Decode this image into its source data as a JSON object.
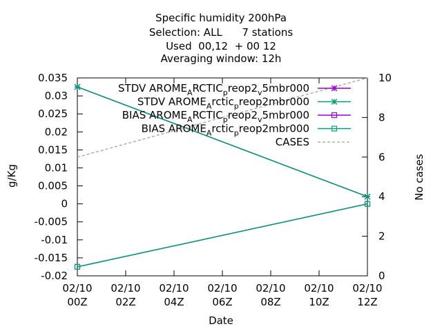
{
  "chart_data": {
    "type": "line",
    "title_lines": [
      "Specific humidity 200hPa",
      "Selection: ALL      7 stations",
      "Used  00,12  + 00 12",
      "Averaging window: 12h"
    ],
    "xlabel": "Date",
    "ylabel": "g/Kg",
    "y2label": "No cases",
    "x_ticks": [
      "02/10 00Z",
      "02/10 02Z",
      "02/10 04Z",
      "02/10 06Z",
      "02/10 08Z",
      "02/10 10Z",
      "02/10 12Z"
    ],
    "x_range_hours": [
      0,
      12
    ],
    "y_ticks": [
      "0.035",
      "0.03",
      "0.025",
      "0.02",
      "0.015",
      "0.01",
      "0.005",
      "0",
      "-0.005",
      "-0.01",
      "-0.015",
      "-0.02"
    ],
    "ylim": [
      -0.02,
      0.035
    ],
    "y2_ticks": [
      "10",
      "8",
      "6",
      "4",
      "2",
      "0"
    ],
    "y2lim": [
      0,
      10
    ],
    "legend_position": "top-right",
    "grid": false,
    "series": [
      {
        "name": "STDV AROME_ARCTIC_preop2_v5mbr000",
        "label_parts": [
          [
            "STDV AROME",
            ""
          ],
          [
            "A",
            "sub"
          ],
          [
            "RCTIC",
            ""
          ],
          [
            "p",
            "sub"
          ],
          [
            "reop2",
            ""
          ],
          [
            "v",
            "sub"
          ],
          [
            "5mbr000",
            ""
          ]
        ],
        "x": [
          0,
          12
        ],
        "y": [
          0.0325,
          0.002
        ],
        "axis": "y1",
        "color": "#9400d3",
        "marker": "star",
        "dash": false
      },
      {
        "name": "STDV AROME_Arctic_preop2mbr000",
        "label_parts": [
          [
            "STDV AROME",
            ""
          ],
          [
            "A",
            "sub"
          ],
          [
            "rctic",
            ""
          ],
          [
            "p",
            "sub"
          ],
          [
            "reop2mbr000",
            ""
          ]
        ],
        "x": [
          0,
          12
        ],
        "y": [
          0.0325,
          0.002
        ],
        "axis": "y1",
        "color": "#009e73",
        "marker": "star",
        "dash": false
      },
      {
        "name": "BIAS AROME_ARCTIC_preop2_v5mbr000",
        "label_parts": [
          [
            "BIAS AROME",
            ""
          ],
          [
            "A",
            "sub"
          ],
          [
            "RCTIC",
            ""
          ],
          [
            "p",
            "sub"
          ],
          [
            "reop2",
            ""
          ],
          [
            "v",
            "sub"
          ],
          [
            "5mbr000",
            ""
          ]
        ],
        "x": [
          0,
          12
        ],
        "y": [
          -0.0175,
          0.0
        ],
        "axis": "y1",
        "color": "#9400d3",
        "marker": "square",
        "dash": false
      },
      {
        "name": "BIAS AROME_Arctic_preop2mbr000",
        "label_parts": [
          [
            "BIAS AROME",
            ""
          ],
          [
            "A",
            "sub"
          ],
          [
            "rctic",
            ""
          ],
          [
            "p",
            "sub"
          ],
          [
            "reop2mbr000",
            ""
          ]
        ],
        "x": [
          0,
          12
        ],
        "y": [
          -0.0175,
          0.0
        ],
        "axis": "y1",
        "color": "#009e73",
        "marker": "square",
        "dash": false
      },
      {
        "name": "CASES",
        "label_parts": [
          [
            "CASES",
            ""
          ]
        ],
        "x": [
          0,
          12
        ],
        "y": [
          6,
          10
        ],
        "axis": "y2",
        "color": "#a0a0a0",
        "marker": "none",
        "dash": true
      }
    ]
  }
}
